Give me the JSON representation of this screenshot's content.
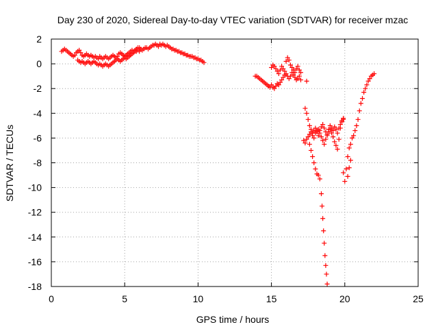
{
  "chart_data": {
    "type": "scatter",
    "title": "Day 230 of 2020, Sidereal Day-to-day VTEC variation (SDTVAR) for receiver mzac",
    "xlabel": "GPS time / hours",
    "ylabel": "SDTVAR / TECUs",
    "xlim": [
      0,
      25
    ],
    "ylim": [
      -18,
      2
    ],
    "xticks": [
      0,
      5,
      10,
      15,
      20,
      25
    ],
    "yticks": [
      2,
      0,
      -2,
      -4,
      -6,
      -8,
      -10,
      -12,
      -14,
      -16,
      -18
    ],
    "grid": true,
    "marker": "+",
    "color": "#ff0000",
    "series": [
      {
        "name": "mzac",
        "x": [
          0.7,
          0.8,
          0.9,
          1.0,
          1.1,
          1.2,
          1.3,
          1.4,
          1.5,
          1.6,
          1.7,
          1.8,
          1.9,
          2.0,
          2.1,
          2.2,
          2.3,
          2.4,
          2.5,
          2.6,
          2.7,
          2.8,
          2.9,
          3.0,
          3.1,
          3.2,
          3.3,
          3.4,
          3.5,
          3.6,
          3.7,
          3.8,
          3.9,
          4.0,
          4.1,
          4.2,
          4.3,
          4.4,
          4.5,
          4.6,
          4.7,
          4.8,
          4.9,
          5.0,
          5.1,
          5.2,
          5.3,
          5.4,
          5.5,
          5.6,
          5.7,
          5.8,
          5.9,
          6.0,
          6.1,
          6.2,
          6.3,
          6.4,
          6.5,
          6.6,
          6.7,
          6.8,
          6.9,
          7.0,
          7.1,
          7.2,
          7.3,
          7.4,
          7.5,
          7.6,
          7.7,
          7.8,
          7.9,
          8.0,
          8.1,
          8.2,
          8.3,
          8.4,
          8.5,
          8.6,
          8.7,
          8.8,
          8.9,
          9.0,
          9.1,
          9.2,
          9.3,
          9.4,
          9.5,
          9.6,
          9.7,
          9.8,
          9.9,
          10.0,
          10.1,
          10.2,
          10.3,
          10.4,
          1.8,
          1.9,
          2.0,
          2.1,
          2.2,
          2.3,
          2.4,
          2.5,
          2.6,
          2.7,
          2.8,
          2.9,
          3.0,
          3.1,
          3.2,
          3.3,
          3.4,
          3.5,
          3.6,
          3.7,
          3.8,
          3.9,
          4.0,
          4.1,
          4.2,
          4.3,
          4.4,
          4.5,
          4.6,
          4.7,
          4.8,
          4.9,
          5.0,
          5.1,
          5.2,
          5.3,
          5.4,
          5.5,
          5.6,
          5.7,
          5.8,
          5.9,
          6.0,
          13.9,
          14.0,
          14.1,
          14.2,
          14.3,
          14.4,
          14.5,
          14.6,
          14.7,
          14.8,
          14.9,
          15.0,
          15.1,
          15.2,
          15.3,
          15.4,
          15.5,
          15.6,
          15.7,
          15.8,
          15.9,
          16.0,
          16.1,
          16.2,
          16.3,
          16.4,
          16.5,
          16.6,
          16.7,
          16.8,
          16.9,
          17.0,
          15.0,
          15.1,
          15.2,
          15.3,
          15.4,
          15.5,
          15.6,
          15.7,
          15.8,
          15.9,
          16.0,
          16.1,
          16.2,
          16.3,
          16.4,
          16.5,
          16.6,
          16.7,
          16.8,
          16.9,
          17.0,
          17.4,
          17.3,
          17.4,
          17.5,
          17.6,
          17.7,
          17.8,
          17.9,
          18.0,
          18.1,
          18.2,
          18.3,
          18.4,
          18.5,
          18.6,
          18.7,
          18.8,
          18.9,
          19.0,
          19.1,
          19.2,
          19.3,
          19.4,
          19.5,
          19.6,
          19.7,
          19.8,
          19.9,
          17.2,
          17.3,
          17.4,
          17.5,
          17.6,
          17.7,
          17.8,
          17.9,
          18.0,
          18.1,
          18.2,
          18.3,
          18.4,
          18.5,
          18.6,
          18.7,
          18.8,
          18.9,
          19.0,
          19.1,
          19.2,
          19.3,
          19.4,
          19.5,
          19.6,
          19.7,
          19.8,
          19.9,
          17.6,
          17.7,
          17.8,
          17.9,
          18.0,
          18.1,
          18.2,
          18.3,
          18.4,
          18.45,
          18.5,
          18.55,
          18.6,
          18.65,
          18.7,
          18.75,
          18.8,
          19.9,
          20.0,
          20.1,
          20.2,
          20.3,
          20.4,
          20.5,
          20.6,
          20.7,
          20.8,
          20.9,
          21.0,
          21.1,
          21.2,
          21.3,
          21.4,
          21.5,
          21.6,
          21.7,
          21.8,
          21.9,
          22.0,
          20.2,
          20.3,
          20.4
        ],
        "y": [
          1.0,
          1.1,
          1.2,
          1.1,
          1.0,
          0.9,
          0.8,
          0.7,
          0.6,
          0.7,
          0.9,
          1.0,
          1.1,
          0.9,
          0.7,
          0.6,
          0.7,
          0.8,
          0.7,
          0.6,
          0.7,
          0.6,
          0.5,
          0.6,
          0.5,
          0.4,
          0.6,
          0.5,
          0.4,
          0.5,
          0.6,
          0.5,
          0.4,
          0.5,
          0.6,
          0.7,
          0.6,
          0.5,
          0.6,
          0.8,
          0.9,
          0.8,
          0.7,
          0.6,
          0.7,
          0.8,
          0.9,
          1.0,
          1.1,
          1.0,
          1.1,
          1.2,
          1.3,
          1.3,
          1.2,
          1.1,
          1.2,
          1.3,
          1.3,
          1.2,
          1.3,
          1.4,
          1.5,
          1.5,
          1.6,
          1.5,
          1.4,
          1.6,
          1.5,
          1.6,
          1.5,
          1.4,
          1.5,
          1.4,
          1.3,
          1.2,
          1.2,
          1.1,
          1.1,
          1.0,
          1.0,
          0.9,
          0.9,
          0.8,
          0.8,
          0.7,
          0.7,
          0.6,
          0.6,
          0.6,
          0.5,
          0.5,
          0.4,
          0.4,
          0.3,
          0.3,
          0.2,
          0.1,
          0.3,
          0.2,
          0.1,
          0.2,
          0.1,
          0.0,
          0.1,
          0.2,
          0.1,
          0.0,
          0.1,
          0.2,
          0.1,
          0.0,
          -0.1,
          0.0,
          -0.1,
          -0.2,
          -0.1,
          0.0,
          -0.1,
          -0.2,
          -0.1,
          0.0,
          0.1,
          0.2,
          0.3,
          0.4,
          0.3,
          0.2,
          0.3,
          0.4,
          0.5,
          0.4,
          0.5,
          0.6,
          0.7,
          0.8,
          0.9,
          1.0,
          1.0,
          1.1,
          1.0,
          -1.0,
          -1.0,
          -1.1,
          -1.2,
          -1.3,
          -1.4,
          -1.5,
          -1.6,
          -1.7,
          -1.8,
          -1.9,
          -1.7,
          -1.9,
          -2.0,
          -1.8,
          -1.6,
          -1.7,
          -1.5,
          -1.3,
          -1.1,
          -0.9,
          -0.8,
          -1.0,
          -1.2,
          -1.0,
          -0.7,
          -0.9,
          -1.1,
          -1.3,
          -1.2,
          -1.0,
          -1.3,
          -0.3,
          -0.1,
          -0.2,
          -0.4,
          -0.6,
          -0.8,
          -0.5,
          -0.2,
          -0.4,
          -0.6,
          0.2,
          0.5,
          0.3,
          -0.1,
          -0.3,
          -0.5,
          -0.7,
          -0.4,
          -0.2,
          -0.5,
          -0.7,
          -1.4,
          -3.6,
          -4.0,
          -4.5,
          -5.0,
          -5.3,
          -5.6,
          -5.4,
          -5.2,
          -5.5,
          -5.8,
          -5.4,
          -5.1,
          -4.9,
          -5.2,
          -5.5,
          -5.7,
          -5.3,
          -5.0,
          -5.2,
          -5.4,
          -5.1,
          -5.3,
          -5.6,
          -5.2,
          -4.9,
          -4.6,
          -4.5,
          -6.2,
          -6.4,
          -6.1,
          -5.9,
          -5.7,
          -5.5,
          -5.8,
          -6.0,
          -5.6,
          -5.4,
          -5.3,
          -5.6,
          -5.9,
          -6.2,
          -6.5,
          -6.1,
          -5.8,
          -5.5,
          -5.3,
          -5.6,
          -5.9,
          -6.3,
          -6.6,
          -6.9,
          -6.1,
          -5.2,
          -4.7,
          -4.4,
          -6.5,
          -7.0,
          -7.5,
          -8.0,
          -8.5,
          -8.9,
          -9.0,
          -9.3,
          -10.5,
          -11.5,
          -12.5,
          -13.5,
          -14.5,
          -15.5,
          -16.3,
          -17.0,
          -17.8,
          -8.8,
          -9.5,
          -8.5,
          -7.5,
          -6.8,
          -6.5,
          -6.0,
          -5.8,
          -5.4,
          -5.0,
          -4.5,
          -3.8,
          -3.2,
          -2.8,
          -2.3,
          -2.0,
          -1.7,
          -1.4,
          -1.2,
          -1.0,
          -0.9,
          -0.8,
          -9.1,
          -8.4,
          -7.8
        ]
      }
    ]
  }
}
